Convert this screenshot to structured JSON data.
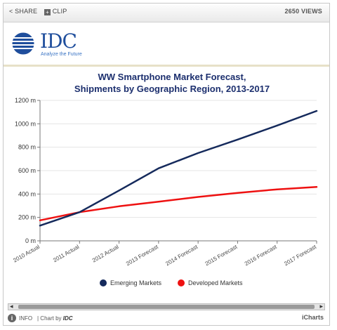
{
  "toolbar": {
    "share_label": "SHARE",
    "clip_label": "CLIP",
    "views_label": "2650 VIEWS"
  },
  "brand": {
    "logo_text": "IDC",
    "tagline": "Analyze the Future"
  },
  "footer": {
    "info_label": "INFO",
    "chart_by_prefix": "| Chart by",
    "chart_by_brand": "IDC",
    "provider": "iCharts"
  },
  "colors": {
    "emerging": "#152a5c",
    "developed": "#ee1111",
    "title": "#1c2f6e"
  },
  "chart_data": {
    "type": "line",
    "title": "WW Smartphone Market Forecast,",
    "subtitle": "Shipments by Geographic Region, 2013-2017",
    "categories": [
      "2010 Actual",
      "2011 Actual",
      "2012 Actual",
      "2013 Forecast",
      "2014 Forecast",
      "2015 Forecast",
      "2016 Forecast",
      "2017 Forecast"
    ],
    "series": [
      {
        "name": "Emerging Markets",
        "values": [
          130,
          245,
          430,
          620,
          750,
          865,
          985,
          1110
        ]
      },
      {
        "name": "Developed Markets",
        "values": [
          175,
          245,
          295,
          335,
          375,
          410,
          440,
          460
        ]
      }
    ],
    "yticks": [
      "0 m",
      "200 m",
      "400 m",
      "600 m",
      "800 m",
      "1000 m",
      "1200 m"
    ],
    "ylim": [
      0,
      1200
    ],
    "grid": true,
    "legend": "bottom"
  }
}
